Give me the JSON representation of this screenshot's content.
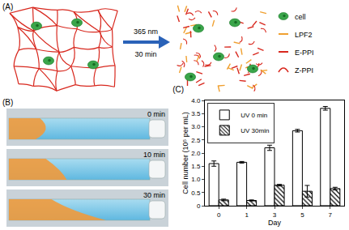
{
  "diagram": {
    "title": "(A)",
    "arrow": {
      "above": "365 nm",
      "below": "30 min"
    },
    "legend": [
      {
        "name": "cell",
        "color": "#3aa54a",
        "marker": "ellipse"
      },
      {
        "name": "LPF2",
        "color": "#f0a030",
        "marker": "dash"
      },
      {
        "name": "E-PPI",
        "color": "#d8281e",
        "marker": "dash"
      },
      {
        "name": "Z-PPI",
        "color": "#d8281e",
        "marker": "curve"
      }
    ]
  },
  "photos": {
    "title": "(B)",
    "times": [
      "0 min",
      "10 min",
      "30 min"
    ]
  },
  "chart_data": {
    "type": "bar",
    "title": "(C)",
    "xlabel": "Day",
    "ylabel": "Cell number (10⁵ per mL)",
    "categories": [
      "0",
      "1",
      "3",
      "5",
      "7"
    ],
    "series": [
      {
        "name": "UV 0 min",
        "color": "#ffffff",
        "marker": "plain",
        "values": [
          1.6,
          1.65,
          2.2,
          2.85,
          3.7
        ],
        "errors": [
          0.1,
          0.03,
          0.1,
          0.05,
          0.07
        ]
      },
      {
        "name": "UV 30min",
        "color": "#ffffff",
        "marker": "hatch",
        "values": [
          0.22,
          0.2,
          0.78,
          0.55,
          0.65
        ],
        "errors": [
          0.03,
          0.02,
          0.03,
          0.22,
          0.05
        ]
      }
    ],
    "ylim": [
      0,
      4.0
    ],
    "yticks": [
      0,
      0.5,
      {
        "value": 1,
        "label": "1.0"
      },
      {
        "value": 1.5,
        "label": "1.5"
      },
      {
        "value": 2,
        "label": "2.0"
      },
      {
        "value": 2.5,
        "label": "2.5"
      },
      {
        "value": 3,
        "label": "3.0"
      },
      {
        "value": 3.5,
        "label": "3.5"
      },
      {
        "value": 4,
        "label": "4.0"
      }
    ],
    "legend": "upper left",
    "grid": false
  }
}
